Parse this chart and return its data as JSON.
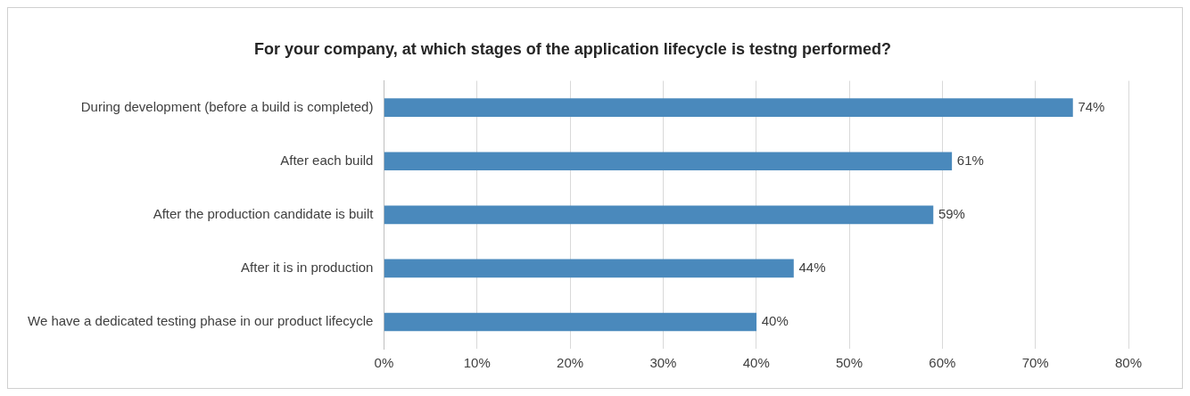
{
  "chart_data": {
    "type": "bar",
    "orientation": "horizontal",
    "title": "For your company, at which stages of the application lifecycle is testng performed?",
    "categories": [
      "During development (before a build is completed)",
      "After each build",
      "After the production candidate is built",
      "After it is in production",
      "We have a dedicated testing phase in our product lifecycle"
    ],
    "values": [
      74,
      61,
      59,
      44,
      40
    ],
    "value_labels": [
      "74%",
      "61%",
      "59%",
      "44%",
      "40%"
    ],
    "color": "#4a89bc",
    "xlim": [
      0,
      80
    ],
    "xticks": [
      {
        "value": 0,
        "label": "0%"
      },
      {
        "value": 10,
        "label": "10%"
      },
      {
        "value": 20,
        "label": "20%"
      },
      {
        "value": 30,
        "label": "30%"
      },
      {
        "value": 40,
        "label": "40%"
      },
      {
        "value": 50,
        "label": "50%"
      },
      {
        "value": 60,
        "label": "60%"
      },
      {
        "value": 70,
        "label": "70%"
      },
      {
        "value": 80,
        "label": "80%"
      }
    ],
    "grid": "x",
    "legend": false
  }
}
